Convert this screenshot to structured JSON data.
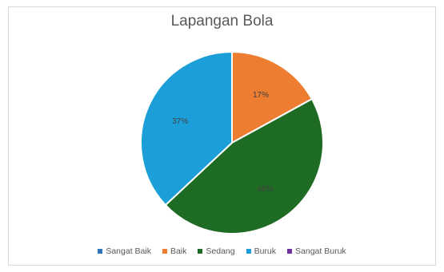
{
  "chart_data": {
    "type": "pie",
    "title": "Lapangan Bola",
    "categories": [
      "Sangat Baik",
      "Baik",
      "Sedang",
      "Buruk",
      "Sangat Buruk"
    ],
    "values": [
      0,
      17,
      46,
      37,
      0
    ],
    "data_labels": [
      "",
      "17%",
      "46%",
      "37%",
      ""
    ],
    "colors": [
      "#2e75b6",
      "#ed7d31",
      "#1e6b24",
      "#1c9fd8",
      "#7030a0"
    ],
    "legend_position": "bottom"
  }
}
